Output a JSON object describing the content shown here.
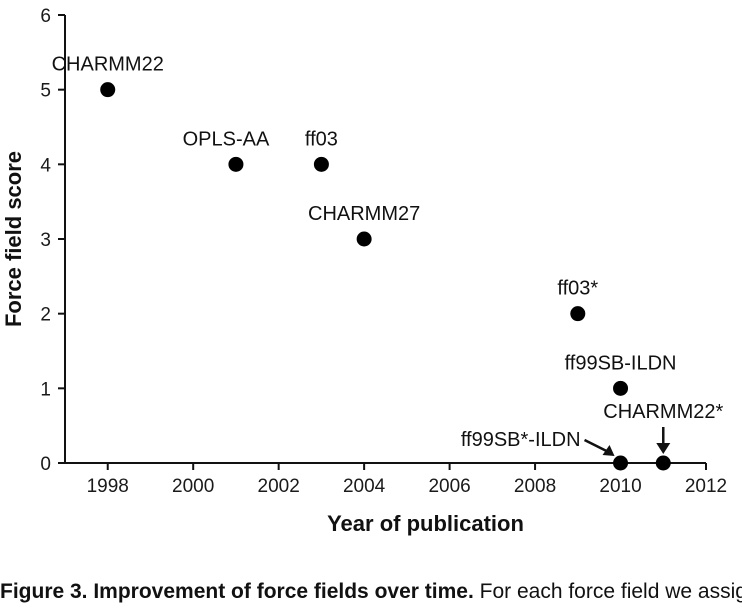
{
  "chart_data": {
    "type": "scatter",
    "title": "",
    "xlabel": "Year of publication",
    "ylabel": "Force field score",
    "xlim": [
      1997,
      2012
    ],
    "ylim": [
      0,
      6
    ],
    "xticks": [
      "1998",
      "2000",
      "2002",
      "2004",
      "2006",
      "2008",
      "2010",
      "2012"
    ],
    "yticks": [
      "0",
      "1",
      "2",
      "3",
      "4",
      "5",
      "6"
    ],
    "grid": false,
    "legend": "none",
    "marker_color": "#000000",
    "points": [
      {
        "label": "CHARMM22",
        "x": 1998,
        "y": 5
      },
      {
        "label": "OPLS-AA",
        "x": 2001,
        "y": 4
      },
      {
        "label": "ff03",
        "x": 2003,
        "y": 4
      },
      {
        "label": "CHARMM27",
        "x": 2004,
        "y": 3
      },
      {
        "label": "ff03*",
        "x": 2009,
        "y": 2
      },
      {
        "label": "ff99SB-ILDN",
        "x": 2010,
        "y": 1
      },
      {
        "label": "ff99SB*-ILDN",
        "x": 2010,
        "y": 0
      },
      {
        "label": "CHARMM22*",
        "x": 2011,
        "y": 0
      }
    ]
  },
  "caption": {
    "title": "Figure 3. Improvement of force fields over time.",
    "text": "For each force field we assign the score as the number of tests with ... model"
  }
}
